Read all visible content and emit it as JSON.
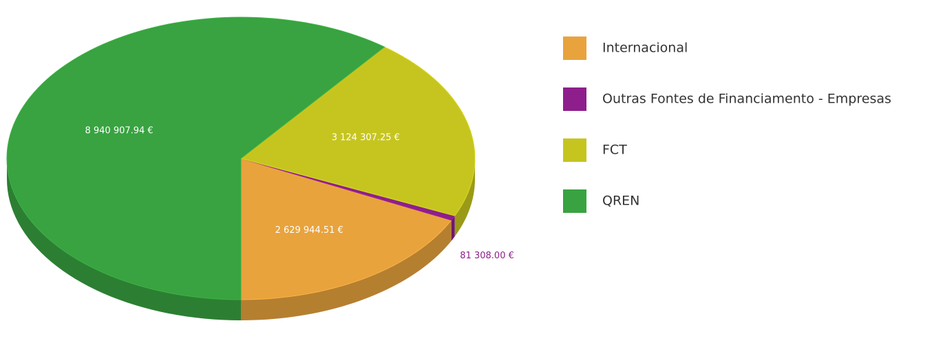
{
  "chart_data": {
    "type": "pie",
    "categories": [
      "Internacional",
      "Outras Fontes de Financiamento - Empresas",
      "FCT",
      "QREN"
    ],
    "values": [
      2629944.51,
      81308.0,
      3124307.25,
      8940907.94
    ],
    "value_labels": [
      "2 629 944.51 €",
      "81 308.00 €",
      "3 124 307.25 €",
      "8 940 907.94 €"
    ],
    "colors": [
      "#e8a33d",
      "#8e1e8c",
      "#c6c51f",
      "#38a340"
    ],
    "legend": "right"
  }
}
